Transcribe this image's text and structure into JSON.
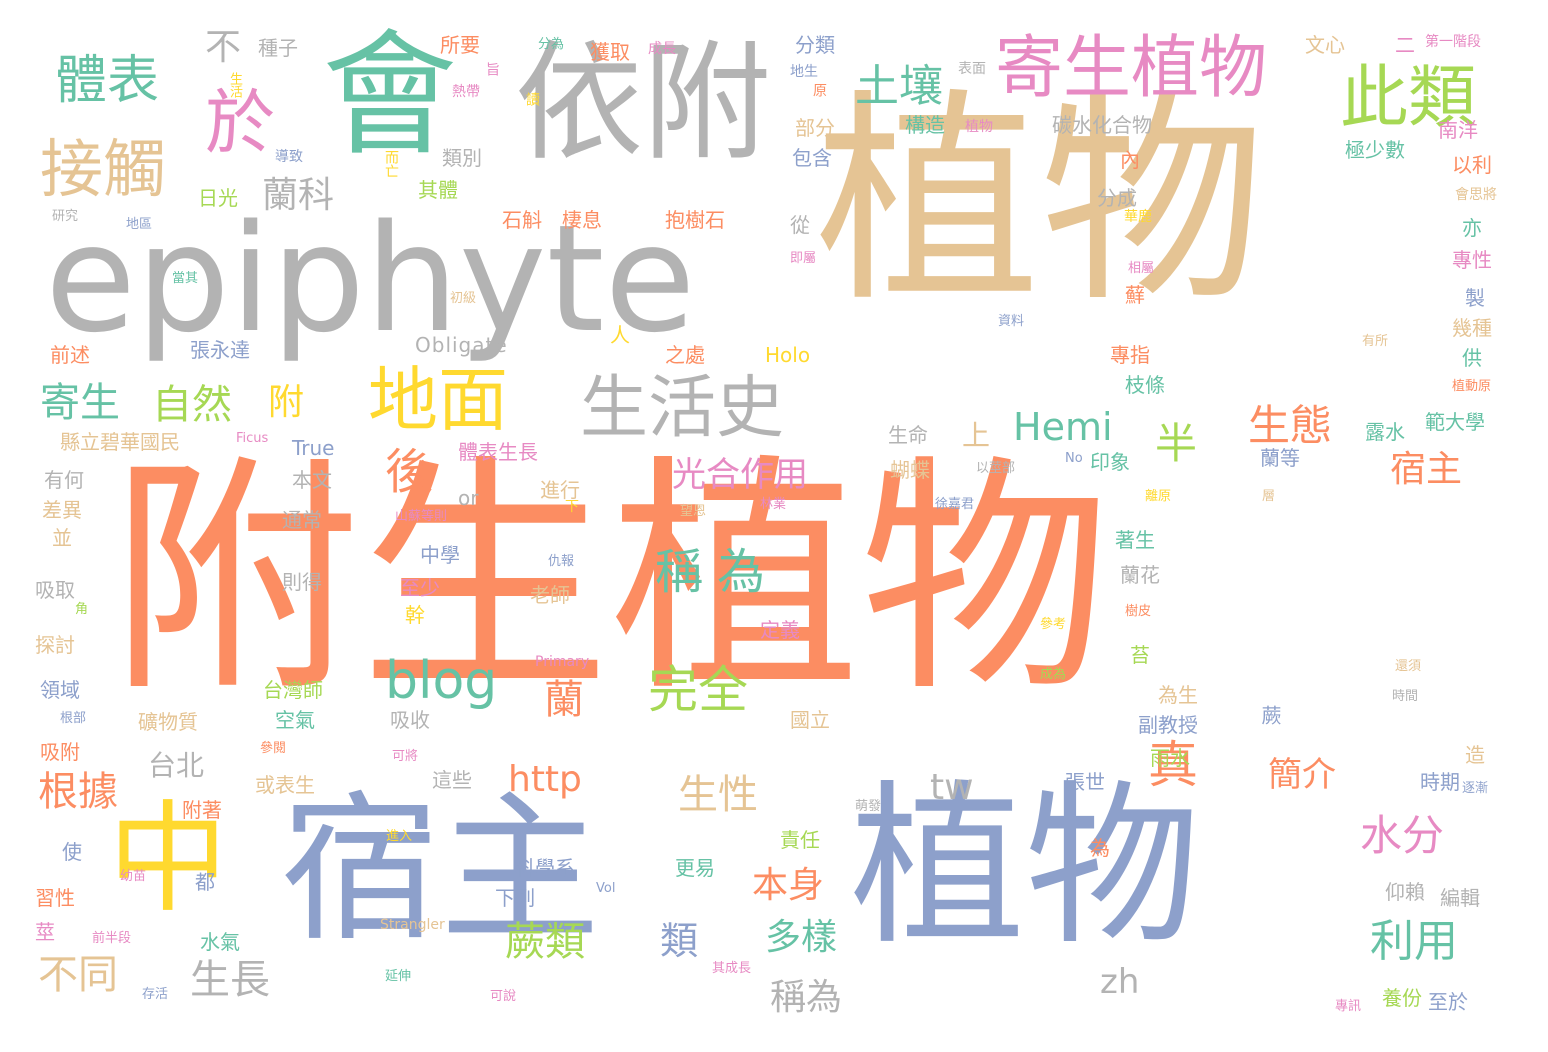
{
  "palette": {
    "orange": "#fc8d62",
    "blue": "#8da0cb",
    "tan": "#e5c494",
    "gray": "#b3b3b3",
    "green": "#66c2a5",
    "pink": "#e78ac3",
    "yellow": "#ffd92f",
    "lime": "#a6d854"
  },
  "words": [
    {
      "text": "附生植物",
      "color": "orange"
    },
    {
      "text": "植物",
      "color": "tan"
    },
    {
      "text": "宿主",
      "color": "blue"
    },
    {
      "text": "植物",
      "color": "blue"
    },
    {
      "text": "epiphyte",
      "color": "gray"
    },
    {
      "text": "依附",
      "color": "gray"
    },
    {
      "text": "會",
      "color": "green"
    },
    {
      "text": "中",
      "color": "yellow"
    },
    {
      "text": "寄生植物",
      "color": "pink"
    },
    {
      "text": "此類",
      "color": "lime"
    },
    {
      "text": "地面",
      "color": "yellow"
    },
    {
      "text": "生活史",
      "color": "gray"
    },
    {
      "text": "接觸",
      "color": "tan"
    },
    {
      "text": "於",
      "color": "pink"
    },
    {
      "text": "體表",
      "color": "green"
    },
    {
      "text": "土壤",
      "color": "green"
    },
    {
      "text": "blog",
      "color": "green"
    },
    {
      "text": "完全",
      "color": "lime"
    },
    {
      "text": "稱為",
      "color": "green"
    },
    {
      "text": "光合作用",
      "color": "pink"
    },
    {
      "text": "後",
      "color": "orange"
    },
    {
      "text": "半",
      "color": "lime"
    },
    {
      "text": "真",
      "color": "orange"
    },
    {
      "text": "生態",
      "color": "orange"
    },
    {
      "text": "宿主",
      "color": "orange"
    },
    {
      "text": "水分",
      "color": "pink"
    },
    {
      "text": "利用",
      "color": "green"
    },
    {
      "text": "簡介",
      "color": "orange"
    },
    {
      "text": "Hemi",
      "color": "green"
    },
    {
      "text": "http",
      "color": "orange"
    },
    {
      "text": "生性",
      "color": "tan"
    },
    {
      "text": "tw",
      "color": "gray"
    },
    {
      "text": "本身",
      "color": "orange"
    },
    {
      "text": "多樣",
      "color": "green"
    },
    {
      "text": "蕨類",
      "color": "lime"
    },
    {
      "text": "類",
      "color": "blue"
    },
    {
      "text": "稱為",
      "color": "gray"
    },
    {
      "text": "生長",
      "color": "gray"
    },
    {
      "text": "不同",
      "color": "tan"
    },
    {
      "text": "根據",
      "color": "orange"
    },
    {
      "text": "寄生",
      "color": "green"
    },
    {
      "text": "自然",
      "color": "lime"
    },
    {
      "text": "附",
      "color": "yellow"
    },
    {
      "text": "蘭科",
      "color": "gray"
    },
    {
      "text": "不",
      "color": "gray"
    },
    {
      "text": "蘭",
      "color": "orange"
    },
    {
      "text": "台北",
      "color": "gray"
    },
    {
      "text": "上",
      "color": "tan"
    },
    {
      "text": "zh",
      "color": "gray"
    },
    {
      "text": "種子",
      "color": "gray"
    },
    {
      "text": "所要",
      "color": "orange"
    },
    {
      "text": "分為",
      "color": "green"
    },
    {
      "text": "獲取",
      "color": "orange"
    },
    {
      "text": "成長",
      "color": "pink"
    },
    {
      "text": "分類",
      "color": "blue"
    },
    {
      "text": "文心",
      "color": "tan"
    },
    {
      "text": "二",
      "color": "pink"
    },
    {
      "text": "第一階段",
      "color": "pink"
    },
    {
      "text": "生活",
      "color": "yellow"
    },
    {
      "text": "熱帶",
      "color": "pink"
    },
    {
      "text": "旨",
      "color": "pink"
    },
    {
      "text": "讀",
      "color": "yellow"
    },
    {
      "text": "地生",
      "color": "blue"
    },
    {
      "text": "原",
      "color": "orange"
    },
    {
      "text": "表面",
      "color": "gray"
    },
    {
      "text": "部分",
      "color": "tan"
    },
    {
      "text": "構造",
      "color": "green"
    },
    {
      "text": "植物",
      "color": "pink"
    },
    {
      "text": "碳水化合物",
      "color": "gray"
    },
    {
      "text": "南洋",
      "color": "pink"
    },
    {
      "text": "導致",
      "color": "blue"
    },
    {
      "text": "類別",
      "color": "gray"
    },
    {
      "text": "包含",
      "color": "blue"
    },
    {
      "text": "內",
      "color": "orange"
    },
    {
      "text": "極少數",
      "color": "green"
    },
    {
      "text": "以利",
      "color": "orange"
    },
    {
      "text": "會思將",
      "color": "tan"
    },
    {
      "text": "日光",
      "color": "lime"
    },
    {
      "text": "而亡",
      "color": "yellow"
    },
    {
      "text": "其體",
      "color": "lime"
    },
    {
      "text": "石斛",
      "color": "orange"
    },
    {
      "text": "棲息",
      "color": "orange"
    },
    {
      "text": "抱樹石",
      "color": "orange"
    },
    {
      "text": "分成",
      "color": "gray"
    },
    {
      "text": "研究",
      "color": "gray"
    },
    {
      "text": "地區",
      "color": "blue"
    },
    {
      "text": "從",
      "color": "gray"
    },
    {
      "text": "華鹿",
      "color": "yellow"
    },
    {
      "text": "亦",
      "color": "green"
    },
    {
      "text": "專性",
      "color": "pink"
    },
    {
      "text": "即屬",
      "color": "pink"
    },
    {
      "text": "相屬",
      "color": "pink"
    },
    {
      "text": "當其",
      "color": "green"
    },
    {
      "text": "蘚",
      "color": "orange"
    },
    {
      "text": "製",
      "color": "blue"
    },
    {
      "text": "初級",
      "color": "tan"
    },
    {
      "text": "資料",
      "color": "blue"
    },
    {
      "text": "幾種",
      "color": "tan"
    },
    {
      "text": "有所",
      "color": "tan"
    },
    {
      "text": "Obligate",
      "color": "gray"
    },
    {
      "text": "人",
      "color": "yellow"
    },
    {
      "text": "前述",
      "color": "orange"
    },
    {
      "text": "張永達",
      "color": "blue"
    },
    {
      "text": "之處",
      "color": "orange"
    },
    {
      "text": "Holo",
      "color": "yellow"
    },
    {
      "text": "專指",
      "color": "orange"
    },
    {
      "text": "供",
      "color": "green"
    },
    {
      "text": "植動原",
      "color": "orange"
    },
    {
      "text": "枝條",
      "color": "green"
    },
    {
      "text": "範大學",
      "color": "green"
    },
    {
      "text": "生命",
      "color": "gray"
    },
    {
      "text": "縣立碧華國民",
      "color": "tan"
    },
    {
      "text": "Ficus",
      "color": "pink"
    },
    {
      "text": "True",
      "color": "blue"
    },
    {
      "text": "體表生長",
      "color": "pink"
    },
    {
      "text": "露水",
      "color": "green"
    },
    {
      "text": "有何",
      "color": "gray"
    },
    {
      "text": "本文",
      "color": "gray"
    },
    {
      "text": "蝴蝶",
      "color": "tan"
    },
    {
      "text": "以莖部",
      "color": "gray"
    },
    {
      "text": "No",
      "color": "blue"
    },
    {
      "text": "印象",
      "color": "green"
    },
    {
      "text": "蘭等",
      "color": "blue"
    },
    {
      "text": "差異",
      "color": "tan"
    },
    {
      "text": "or",
      "color": "gray"
    },
    {
      "text": "進行",
      "color": "tan"
    },
    {
      "text": "離原",
      "color": "yellow"
    },
    {
      "text": "層",
      "color": "tan"
    },
    {
      "text": "通常",
      "color": "gray"
    },
    {
      "text": "山蘇等則",
      "color": "pink"
    },
    {
      "text": "下",
      "color": "yellow"
    },
    {
      "text": "望恩",
      "color": "tan"
    },
    {
      "text": "林業",
      "color": "pink"
    },
    {
      "text": "徐嘉君",
      "color": "blue"
    },
    {
      "text": "並",
      "color": "tan"
    },
    {
      "text": "中學",
      "color": "blue"
    },
    {
      "text": "著生",
      "color": "green"
    },
    {
      "text": "吸取",
      "color": "gray"
    },
    {
      "text": "則得",
      "color": "gray"
    },
    {
      "text": "仇報",
      "color": "blue"
    },
    {
      "text": "蘭花",
      "color": "gray"
    },
    {
      "text": "至少",
      "color": "pink"
    },
    {
      "text": "老師",
      "color": "tan"
    },
    {
      "text": "角",
      "color": "lime"
    },
    {
      "text": "幹",
      "color": "yellow"
    },
    {
      "text": "樹皮",
      "color": "orange"
    },
    {
      "text": "探討",
      "color": "tan"
    },
    {
      "text": "定義",
      "color": "pink"
    },
    {
      "text": "參考",
      "color": "yellow"
    },
    {
      "text": "苔",
      "color": "lime"
    },
    {
      "text": "Primary",
      "color": "pink"
    },
    {
      "text": "還須",
      "color": "tan"
    },
    {
      "text": "領域",
      "color": "blue"
    },
    {
      "text": "台灣師",
      "color": "lime"
    },
    {
      "text": "成為",
      "color": "lime"
    },
    {
      "text": "為生",
      "color": "tan"
    },
    {
      "text": "時間",
      "color": "gray"
    },
    {
      "text": "根部",
      "color": "blue"
    },
    {
      "text": "礦物質",
      "color": "tan"
    },
    {
      "text": "空氣",
      "color": "green"
    },
    {
      "text": "吸收",
      "color": "gray"
    },
    {
      "text": "國立",
      "color": "tan"
    },
    {
      "text": "副教授",
      "color": "blue"
    },
    {
      "text": "蕨",
      "color": "blue"
    },
    {
      "text": "吸附",
      "color": "orange"
    },
    {
      "text": "參閱",
      "color": "orange"
    },
    {
      "text": "可將",
      "color": "pink"
    },
    {
      "text": "這些",
      "color": "gray"
    },
    {
      "text": "雨水",
      "color": "lime"
    },
    {
      "text": "造",
      "color": "tan"
    },
    {
      "text": "張世",
      "color": "blue"
    },
    {
      "text": "或表生",
      "color": "tan"
    },
    {
      "text": "時期",
      "color": "blue"
    },
    {
      "text": "逐漸",
      "color": "blue"
    },
    {
      "text": "附著",
      "color": "orange"
    },
    {
      "text": "萌發",
      "color": "gray"
    },
    {
      "text": "責任",
      "color": "lime"
    },
    {
      "text": "進入",
      "color": "yellow"
    },
    {
      "text": "使",
      "color": "blue"
    },
    {
      "text": "為",
      "color": "orange"
    },
    {
      "text": "幼苗",
      "color": "pink"
    },
    {
      "text": "科學系",
      "color": "blue"
    },
    {
      "text": "更易",
      "color": "green"
    },
    {
      "text": "都",
      "color": "blue"
    },
    {
      "text": "Vol",
      "color": "blue"
    },
    {
      "text": "習性",
      "color": "orange"
    },
    {
      "text": "下列",
      "color": "blue"
    },
    {
      "text": "仰賴",
      "color": "gray"
    },
    {
      "text": "編輯",
      "color": "gray"
    },
    {
      "text": "莖",
      "color": "pink"
    },
    {
      "text": "Strangler",
      "color": "tan"
    },
    {
      "text": "水氣",
      "color": "green"
    },
    {
      "text": "前半段",
      "color": "pink"
    },
    {
      "text": "其成長",
      "color": "pink"
    },
    {
      "text": "延伸",
      "color": "green"
    },
    {
      "text": "存活",
      "color": "blue"
    },
    {
      "text": "可說",
      "color": "pink"
    },
    {
      "text": "養份",
      "color": "lime"
    },
    {
      "text": "至於",
      "color": "blue"
    },
    {
      "text": "專訊",
      "color": "pink"
    }
  ]
}
